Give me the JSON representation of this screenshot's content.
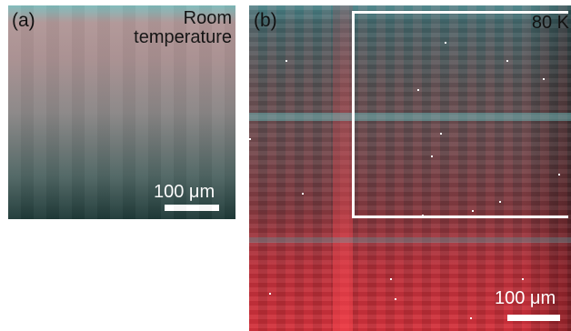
{
  "panel_a": {
    "label": "(a)",
    "annotation_line1": "Room",
    "annotation_line2": "temperature",
    "scale_label": "100 μm"
  },
  "panel_b": {
    "label": "(b)",
    "annotation": "80 K",
    "scale_label": "100 μm"
  }
}
